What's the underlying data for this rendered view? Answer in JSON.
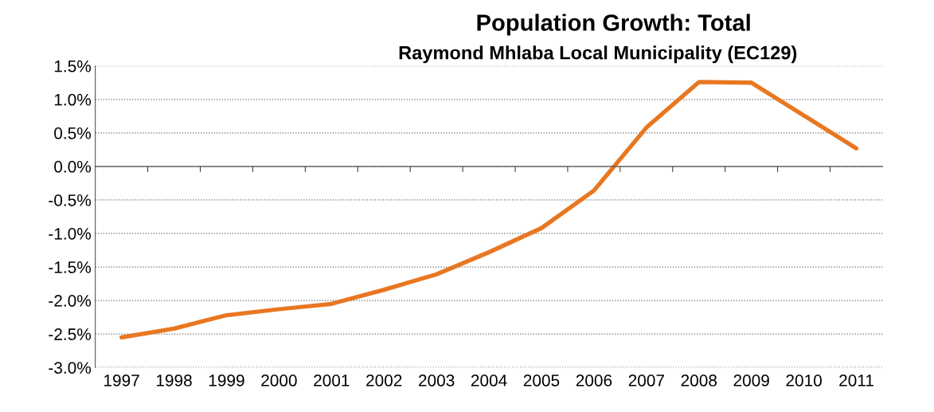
{
  "chart_data": {
    "type": "line",
    "title": "Population Growth: Total",
    "subtitle": "Raymond Mhlaba Local Municipality (EC129)",
    "categories": [
      "1997",
      "1998",
      "1999",
      "2000",
      "2001",
      "2002",
      "2003",
      "2004",
      "2005",
      "2006",
      "2007",
      "2008",
      "2009",
      "2010",
      "2011"
    ],
    "series": [
      {
        "color": "#e87722",
        "values": [
          -2.55,
          -2.42,
          -2.22,
          -2.13,
          -2.05,
          -1.84,
          -1.61,
          -1.28,
          -0.92,
          -0.36,
          0.58,
          1.26,
          1.25,
          0.76,
          0.27
        ]
      }
    ],
    "ylim": [
      -3.0,
      1.5
    ],
    "yticks": [
      {
        "value": -3.0,
        "label": "-3.0%"
      },
      {
        "value": -2.5,
        "label": "-2.5%"
      },
      {
        "value": -2.0,
        "label": "-2.0%"
      },
      {
        "value": -1.5,
        "label": "-1.5%"
      },
      {
        "value": -1.0,
        "label": "-1.0%"
      },
      {
        "value": -0.5,
        "label": "-0.5%"
      },
      {
        "value": 0.0,
        "label": "0.0%"
      },
      {
        "value": 0.5,
        "label": "0.5%"
      },
      {
        "value": 1.0,
        "label": "1.0%"
      },
      {
        "value": 1.5,
        "label": "1.5%"
      }
    ],
    "grid": "y",
    "legend": false,
    "marker": "none",
    "line_style": "solid"
  }
}
